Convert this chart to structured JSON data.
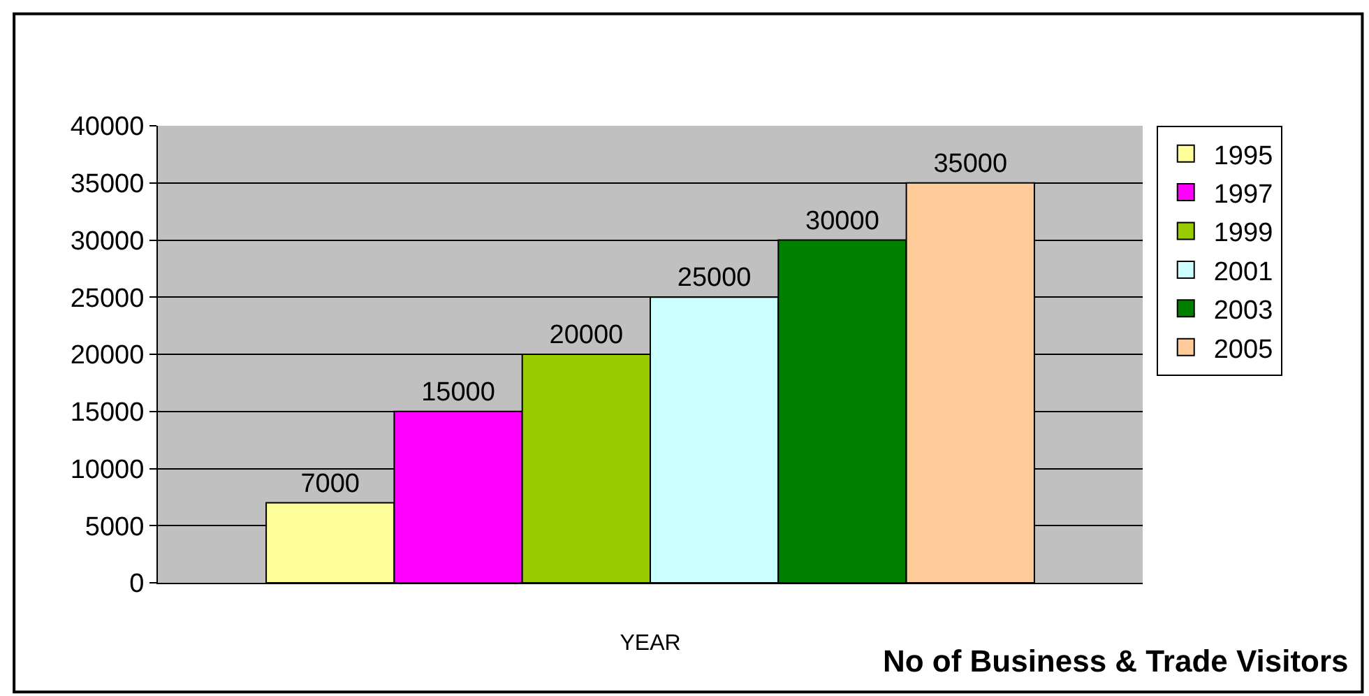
{
  "chart_data": {
    "type": "bar",
    "title": "No of Business & Trade Visitors",
    "xlabel": null,
    "categories": [
      "YEAR"
    ],
    "series": [
      {
        "name": "1995",
        "color": "#ffff99",
        "values": [
          7000
        ]
      },
      {
        "name": "1997",
        "color": "#ff00ff",
        "values": [
          15000
        ]
      },
      {
        "name": "1999",
        "color": "#99cc00",
        "values": [
          20000
        ]
      },
      {
        "name": "2001",
        "color": "#ccffff",
        "values": [
          25000
        ]
      },
      {
        "name": "2003",
        "color": "#008000",
        "values": [
          30000
        ]
      },
      {
        "name": "2005",
        "color": "#ffcc99",
        "values": [
          35000
        ]
      }
    ],
    "ylim": [
      0,
      40000
    ],
    "yticks": [
      0,
      5000,
      10000,
      15000,
      20000,
      25000,
      30000,
      35000,
      40000
    ],
    "grid": "y",
    "legend": "right",
    "data_labels": true
  }
}
